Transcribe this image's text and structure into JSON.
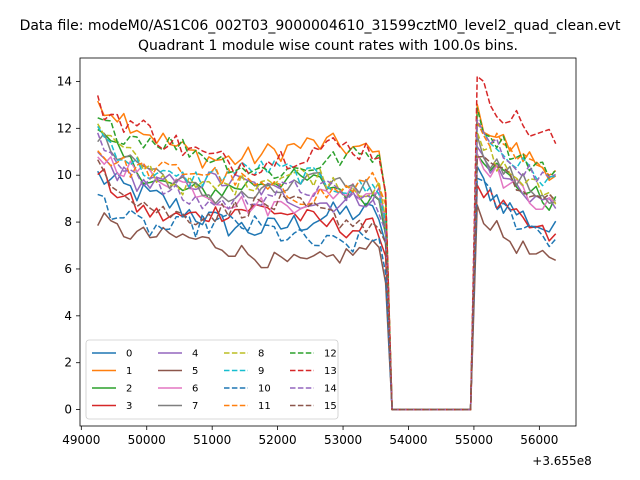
{
  "chart_data": {
    "type": "line",
    "suptitle": "Data file: modeM0/AS1C06_002T03_9000004610_31599cztM0_level2_quad_clean.evt",
    "title": "Quadrant 1 module wise count rates with 100.0s bins.",
    "xlabel": "",
    "ylabel": "",
    "x_offset_label": "+3.655e8",
    "xlim": [
      48980,
      56560
    ],
    "ylim": [
      -0.7,
      15.0
    ],
    "x_ticks": [
      49000,
      50000,
      51000,
      52000,
      53000,
      54000,
      55000,
      56000
    ],
    "x_tick_labels": [
      "49000",
      "50000",
      "51000",
      "52000",
      "53000",
      "54000",
      "55000",
      "56000"
    ],
    "y_ticks": [
      0,
      2,
      4,
      6,
      8,
      10,
      12,
      14
    ],
    "y_tick_labels": [
      "0",
      "2",
      "4",
      "6",
      "8",
      "10",
      "12",
      "14"
    ],
    "bin_seconds": 100,
    "x_start": 49250,
    "x_end": 56250,
    "gap": [
      53750,
      54950
    ],
    "series": [
      {
        "name": "0",
        "color": "#1f77b4",
        "dash": "solid",
        "level1": 8.0,
        "level2": 8.6,
        "amp": 0.55
      },
      {
        "name": "1",
        "color": "#ff7f0e",
        "dash": "solid",
        "level1": 10.9,
        "level2": 11.2,
        "amp": 0.5
      },
      {
        "name": "2",
        "color": "#2ca02c",
        "dash": "solid",
        "level1": 9.4,
        "level2": 9.8,
        "amp": 0.45
      },
      {
        "name": "3",
        "color": "#d62728",
        "dash": "solid",
        "level1": 8.1,
        "level2": 8.3,
        "amp": 0.45
      },
      {
        "name": "4",
        "color": "#9467bd",
        "dash": "solid",
        "level1": 9.2,
        "level2": 9.7,
        "amp": 0.45
      },
      {
        "name": "5",
        "color": "#8c564b",
        "dash": "solid",
        "level1": 6.6,
        "level2": 7.2,
        "amp": 0.4
      },
      {
        "name": "6",
        "color": "#e377c2",
        "dash": "solid",
        "level1": 9.0,
        "level2": 9.6,
        "amp": 0.45
      },
      {
        "name": "7",
        "color": "#7f7f7f",
        "dash": "solid",
        "level1": 9.3,
        "level2": 10.0,
        "amp": 0.45
      },
      {
        "name": "8",
        "color": "#bcbd22",
        "dash": "dashed",
        "level1": 9.6,
        "level2": 10.1,
        "amp": 0.45
      },
      {
        "name": "9",
        "color": "#17becf",
        "dash": "dashed",
        "level1": 9.8,
        "level2": 10.7,
        "amp": 0.45
      },
      {
        "name": "10",
        "color": "#1f77b4",
        "dash": "dashed",
        "level1": 7.4,
        "level2": 8.3,
        "amp": 0.5
      },
      {
        "name": "11",
        "color": "#ff7f0e",
        "dash": "dashed",
        "level1": 9.5,
        "level2": 10.9,
        "amp": 0.45
      },
      {
        "name": "12",
        "color": "#2ca02c",
        "dash": "dashed",
        "level1": 10.5,
        "level2": 11.1,
        "amp": 0.45
      },
      {
        "name": "13",
        "color": "#d62728",
        "dash": "dashed",
        "level1": 10.8,
        "level2": 12.5,
        "amp": 0.55
      },
      {
        "name": "14",
        "color": "#9467bd",
        "dash": "dashed",
        "level1": 9.0,
        "level2": 10.7,
        "amp": 0.45
      },
      {
        "name": "15",
        "color": "#8c564b",
        "dash": "dashed",
        "level1": 8.3,
        "level2": 9.7,
        "amp": 0.45
      }
    ],
    "legend_position": "lower-left",
    "legend_columns": 4,
    "grid": false
  }
}
